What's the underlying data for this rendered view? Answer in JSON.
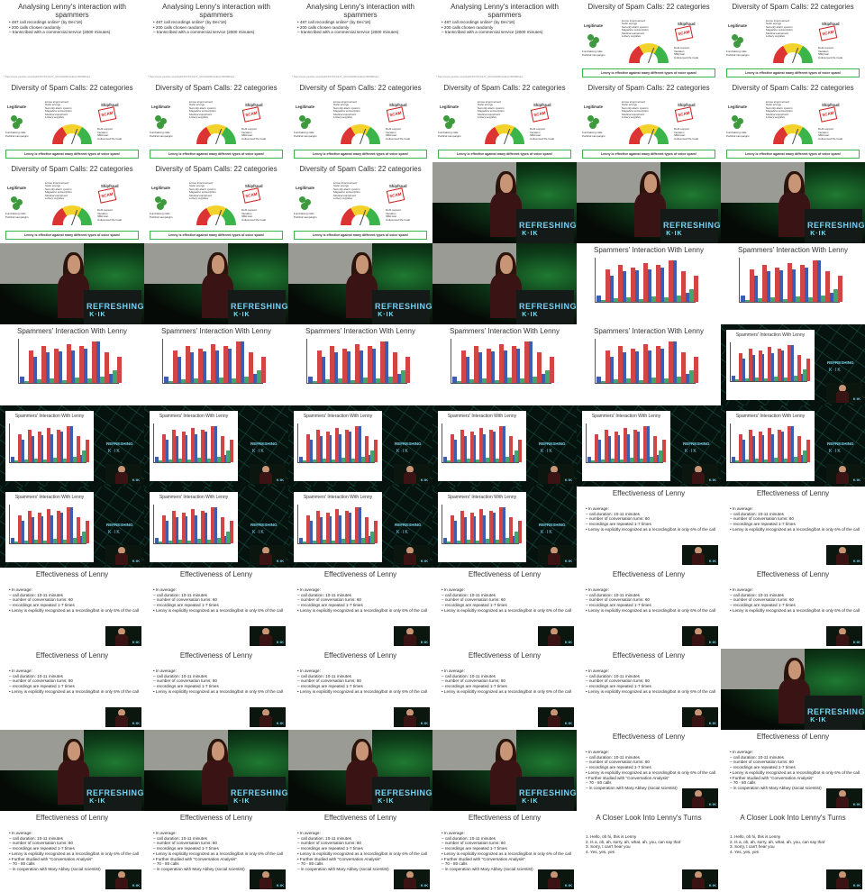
{
  "grid": {
    "columns": 6,
    "rows": 11
  },
  "slides": {
    "analysing": {
      "title": "Analysing Lenny's interaction with spammers",
      "bullets": [
        "• 487 call recordings online* (by Dec'16)",
        "• 200 calls chosen randomly",
        "– transcribed with a commercial service (2000 minutes)"
      ],
      "footnote": "* https://www.youtube.com/playlist?list=PLduL71_GKzHHk03LbenjRwmi8XNMEuLe"
    },
    "diversity": {
      "title": "Diversity of Spam Calls: 22 categories",
      "legitimate": "Legitimate",
      "shiphunt": "Shipfraud",
      "scam": "SCAM",
      "legit_items": [
        "Fundraising calls",
        "Political campaigns"
      ],
      "middle_items": [
        "Home improvement",
        "Solar energy",
        "Security alarm system",
        "Magazine subscription",
        "Medical equipment",
        "Lottery supplies"
      ],
      "right_items": [
        "Debt support",
        "Vacation",
        "SBA loan",
        "Unlicensed life trade"
      ],
      "box": "Lenny is effective against many different types of voice spam!"
    },
    "spammers_chart": {
      "title": "Spammers' Interaction With Lenny"
    },
    "effectiveness": {
      "title": "Effectiveness of Lenny",
      "bullets": [
        "• In average:",
        "– call duration: 10-11 minutes",
        "– number of conversation turns: 60",
        "– recordings are repeated 1-7 times",
        "• Lenny is explicitly recognized as a recording/bot in only 6% of the calls"
      ],
      "further": [
        "• Further studied with \"Conversation Analysis\"",
        "– 70 - 80 calls",
        "– in cooperation with Mary Abbey (social scientist)"
      ]
    },
    "closer": {
      "title": "A Closer Look Into Lenny's Turns",
      "items": [
        "1. Hello, oh hi, this is Lenny",
        "2. Is a, oh, ah, sorry, ah, what, ah, you, can say that",
        "3. Sorry, I can't hear you",
        "4. Yes, yes, yes"
      ]
    }
  },
  "stage": {
    "brand": "REFRESHING",
    "glyph": "K·IK",
    "sub": "MEMORIES"
  },
  "chart_data": {
    "type": "bar",
    "title": "Spammers' Interaction With Lenny",
    "categories": [
      "c1",
      "c2",
      "c3",
      "c4",
      "c5",
      "c6",
      "c7",
      "c8"
    ],
    "series": [
      {
        "name": "",
        "values": [
          15,
          60,
          70,
          72,
          75,
          80,
          95,
          20
        ],
        "color": "#3a5fb0"
      },
      {
        "name": "",
        "values": [
          5,
          8,
          10,
          6,
          12,
          10,
          15,
          30
        ],
        "color": "#44a56a"
      },
      {
        "name": "",
        "values": [
          75,
          85,
          80,
          90,
          85,
          95,
          70,
          60
        ],
        "color": "#d14545"
      }
    ]
  },
  "cells": [
    "a",
    "a",
    "a",
    "a",
    "d",
    "d",
    "d",
    "d",
    "d",
    "d",
    "d",
    "d",
    "d",
    "d",
    "d",
    "s",
    "s",
    "s",
    "s",
    "s",
    "s",
    "s",
    "c",
    "c",
    "c",
    "c",
    "c",
    "c",
    "c",
    "n",
    "n",
    "n",
    "n",
    "n",
    "n",
    "n",
    "n",
    "n",
    "n",
    "n",
    "e",
    "e",
    "e",
    "e",
    "e",
    "e",
    "e",
    "e",
    "e",
    "e",
    "e",
    "e",
    "e",
    "s",
    "s",
    "s",
    "s",
    "s",
    "f",
    "f",
    "f",
    "f",
    "f",
    "f",
    "k",
    "k"
  ]
}
